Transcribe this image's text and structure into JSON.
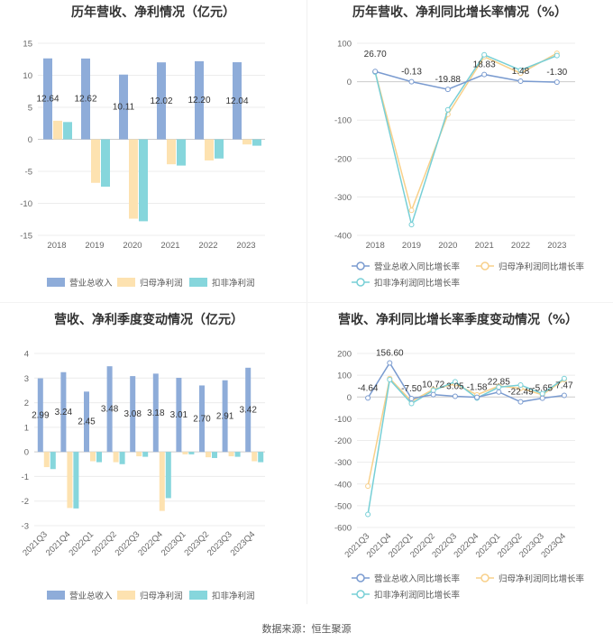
{
  "source_text": "数据来源：恒生聚源",
  "colors": {
    "revenue": "#8eacd9",
    "parent_profit": "#fde2b0",
    "deducted_profit": "#86d6dc",
    "grid": "#ececec",
    "axis": "#cccccc"
  },
  "chart_data": [
    {
      "id": "annual_bar",
      "type": "bar",
      "title": "历年营收、净利情况（亿元）",
      "categories": [
        "2018",
        "2019",
        "2020",
        "2021",
        "2022",
        "2023"
      ],
      "series": [
        {
          "name": "营业总收入",
          "values": [
            12.64,
            12.62,
            10.11,
            12.02,
            12.2,
            12.04
          ],
          "labels": [
            "12.64",
            "12.62",
            "10.11",
            "12.02",
            "12.20",
            "12.04"
          ]
        },
        {
          "name": "归母净利润",
          "values": [
            2.9,
            -6.8,
            -12.4,
            -3.9,
            -3.3,
            -0.8
          ]
        },
        {
          "name": "扣非净利润",
          "values": [
            2.7,
            -7.4,
            -12.8,
            -4.1,
            -3.0,
            -1.0
          ]
        }
      ],
      "ylim": [
        -15,
        15
      ],
      "yticks": [
        15,
        10,
        5,
        0,
        -5,
        -10,
        -15
      ]
    },
    {
      "id": "annual_growth",
      "type": "line",
      "title": "历年营收、净利同比增长率情况（%）",
      "categories": [
        "2018",
        "2019",
        "2020",
        "2021",
        "2022",
        "2023"
      ],
      "series": [
        {
          "name": "营业总收入同比增长率",
          "values": [
            26.7,
            -0.13,
            -19.88,
            18.83,
            1.48,
            -1.3
          ],
          "labels": [
            "26.70",
            "-0.13",
            "-19.88",
            "18.83",
            "1.48",
            "-1.30"
          ]
        },
        {
          "name": "归母净利润同比增长率",
          "values": [
            26,
            -335,
            -85,
            65,
            22,
            74
          ]
        },
        {
          "name": "扣非净利润同比增长率",
          "values": [
            25,
            -372,
            -73,
            70,
            30,
            68
          ]
        }
      ],
      "ylim": [
        -400,
        100
      ],
      "yticks": [
        100,
        0,
        -100,
        -200,
        -300,
        -400
      ]
    },
    {
      "id": "quarterly_bar",
      "type": "bar",
      "title": "营收、净利季度变动情况（亿元）",
      "categories": [
        "2021Q3",
        "2021Q4",
        "2022Q1",
        "2022Q2",
        "2022Q3",
        "2022Q4",
        "2023Q1",
        "2023Q2",
        "2023Q3",
        "2023Q4"
      ],
      "series": [
        {
          "name": "营业总收入",
          "values": [
            2.99,
            3.24,
            2.45,
            3.48,
            3.08,
            3.18,
            3.01,
            2.7,
            2.91,
            3.42
          ],
          "labels": [
            "2.99",
            "3.24",
            "2.45",
            "3.48",
            "3.08",
            "3.18",
            "3.01",
            "2.70",
            "2.91",
            "3.42"
          ]
        },
        {
          "name": "归母净利润",
          "values": [
            -0.62,
            -2.28,
            -0.38,
            -0.42,
            -0.18,
            -2.4,
            -0.1,
            -0.22,
            -0.18,
            -0.38
          ]
        },
        {
          "name": "扣非净利润",
          "values": [
            -0.7,
            -2.3,
            -0.42,
            -0.5,
            -0.2,
            -1.88,
            -0.1,
            -0.25,
            -0.2,
            -0.42
          ]
        }
      ],
      "ylim": [
        -3,
        4
      ],
      "yticks": [
        4,
        3,
        2,
        1,
        0,
        -1,
        -2,
        -3
      ]
    },
    {
      "id": "quarterly_growth",
      "type": "line",
      "title": "营收、净利同比增长率季度变动情况（%）",
      "categories": [
        "2021Q3",
        "2021Q4",
        "2022Q1",
        "2022Q2",
        "2022Q3",
        "2022Q4",
        "2023Q1",
        "2023Q2",
        "2023Q3",
        "2023Q4"
      ],
      "series": [
        {
          "name": "营业总收入同比增长率",
          "values": [
            -4.64,
            156.6,
            -7.5,
            10.72,
            3.05,
            -1.58,
            22.85,
            -22.49,
            -5.65,
            7.47
          ],
          "labels": [
            "-4.64",
            "156.60",
            "-7.50",
            "10.72",
            "3.05",
            "-1.58",
            "22.85",
            "-22.49",
            "-5.65",
            "7.47"
          ]
        },
        {
          "name": "归母净利润同比增长率",
          "values": [
            -410,
            85,
            -20,
            35,
            60,
            10,
            50,
            40,
            10,
            80
          ]
        },
        {
          "name": "扣非净利润同比增长率",
          "values": [
            -540,
            80,
            -30,
            30,
            70,
            -5,
            45,
            55,
            15,
            85
          ]
        }
      ],
      "ylim": [
        -600,
        200
      ],
      "yticks": [
        200,
        100,
        0,
        -100,
        -200,
        -300,
        -400,
        -500,
        -600
      ]
    }
  ]
}
